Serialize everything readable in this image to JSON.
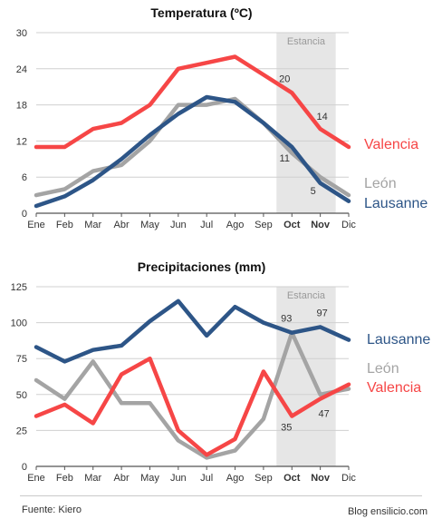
{
  "colors": {
    "valencia": "#f64646",
    "lausanne": "#2d5587",
    "leon": "#a4a4a4",
    "highlight": "#e6e6e6",
    "grid": "#d0d0d0"
  },
  "chart_data": [
    {
      "type": "line",
      "title": "Temperatura (ºC)",
      "categories": [
        "Ene",
        "Feb",
        "Mar",
        "Abr",
        "May",
        "Jun",
        "Jul",
        "Ago",
        "Sep",
        "Oct",
        "Nov",
        "Dic"
      ],
      "bold_categories": [
        "Oct",
        "Nov"
      ],
      "yticks": [
        0,
        6,
        12,
        18,
        24,
        30
      ],
      "ylim": [
        0,
        30
      ],
      "grid": true,
      "highlight": {
        "label": "Estancia",
        "from": "Oct",
        "to": "Nov"
      },
      "series": [
        {
          "name": "León",
          "color_key": "leon",
          "values": [
            3,
            4,
            7,
            8,
            12,
            18,
            18,
            19,
            15,
            10,
            6,
            3
          ]
        },
        {
          "name": "Valencia",
          "color_key": "valencia",
          "values": [
            11,
            11,
            14,
            15,
            18,
            24,
            25,
            26,
            23,
            20,
            14,
            11
          ]
        },
        {
          "name": "Lausanne",
          "color_key": "lausanne",
          "values": [
            1.2,
            2.8,
            5.5,
            9,
            13,
            16.5,
            19.3,
            18.5,
            15,
            11,
            5,
            2
          ]
        }
      ],
      "annotations": [
        {
          "x": "Oct",
          "y": 20,
          "text": "20"
        },
        {
          "x": "Nov",
          "y": 14,
          "text": "14"
        },
        {
          "x": "Oct",
          "y": 11,
          "text": "11"
        },
        {
          "x": "Nov",
          "y": 5,
          "text": "5"
        }
      ],
      "legend": [
        {
          "name": "Valencia",
          "color_key": "valencia"
        },
        {
          "name": "León",
          "color_key": "leon"
        },
        {
          "name": "Lausanne",
          "color_key": "lausanne"
        }
      ]
    },
    {
      "type": "line",
      "title": "Precipitaciones (mm)",
      "categories": [
        "Ene",
        "Feb",
        "Mar",
        "Abr",
        "May",
        "Jun",
        "Jul",
        "Ago",
        "Sep",
        "Oct",
        "Nov",
        "Dic"
      ],
      "bold_categories": [
        "Oct",
        "Nov"
      ],
      "yticks": [
        0,
        25,
        50,
        75,
        100,
        125
      ],
      "ylim": [
        0,
        125
      ],
      "grid": true,
      "highlight": {
        "label": "Estancia",
        "from": "Oct",
        "to": "Nov"
      },
      "series": [
        {
          "name": "León",
          "color_key": "leon",
          "values": [
            60,
            47,
            73,
            44,
            44,
            18,
            6,
            11,
            33,
            93,
            50,
            54
          ]
        },
        {
          "name": "Valencia",
          "color_key": "valencia",
          "values": [
            35,
            43,
            30,
            64,
            75,
            25,
            8,
            19,
            66,
            35,
            47,
            57
          ]
        },
        {
          "name": "Lausanne",
          "color_key": "lausanne",
          "values": [
            83,
            73,
            81,
            84,
            101,
            115,
            91,
            111,
            100,
            93,
            97,
            88
          ]
        }
      ],
      "annotations": [
        {
          "x": "Oct",
          "y": 93,
          "text": "93"
        },
        {
          "x": "Nov",
          "y": 97,
          "text": "97"
        },
        {
          "x": "Nov",
          "y": 47,
          "text": "47"
        },
        {
          "x": "Oct",
          "y": 35,
          "text": "35"
        }
      ],
      "legend": [
        {
          "name": "Lausanne",
          "color_key": "lausanne"
        },
        {
          "name": "León",
          "color_key": "leon"
        },
        {
          "name": "Valencia",
          "color_key": "valencia"
        }
      ]
    }
  ],
  "footer": {
    "source": "Fuente: Kiero",
    "credit": "Blog ensilicio.com"
  }
}
